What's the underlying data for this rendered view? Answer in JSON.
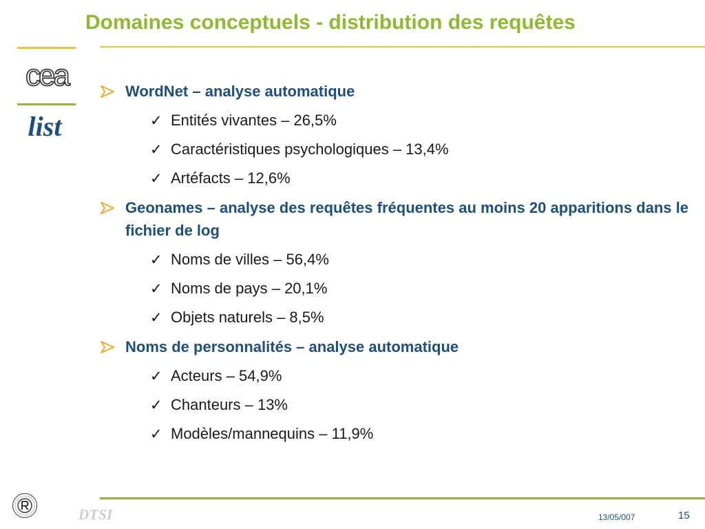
{
  "slide": {
    "title": "Domaines conceptuels - distribution des requêtes",
    "sections": [
      {
        "heading": "WordNet – analyse automatique",
        "items": [
          "Entités vivantes – 26,5%",
          "Caractéristiques psychologiques – 13,4%",
          "Artéfacts – 12,6%"
        ]
      },
      {
        "heading": "Geonames – analyse des requêtes fréquentes au moins 20 apparitions dans le fichier de log",
        "items": [
          "Noms de villes – 56,4%",
          "Noms de pays – 20,1%",
          "Objets naturels – 8,5%"
        ]
      },
      {
        "heading": "Noms de personnalités – analyse automatique",
        "items": [
          "Acteurs – 54,9%",
          "Chanteurs – 13%",
          "Modèles/mannequins – 11,9%"
        ]
      }
    ]
  },
  "logos": {
    "top": "cea",
    "bottom": "list"
  },
  "footer": {
    "org": "DTSI",
    "date": "13/05/007",
    "page": "15"
  },
  "colors": {
    "title": "#8DBA2E",
    "heading": "#1B4F80",
    "bullet_arrow": "#F2A81D",
    "rule_top": "#F2C232",
    "rule_bottom": "#8DBA2E"
  },
  "icons": {
    "level1_bullet": "arrow-bullet-icon",
    "level2_bullet": "checkmark-icon"
  }
}
